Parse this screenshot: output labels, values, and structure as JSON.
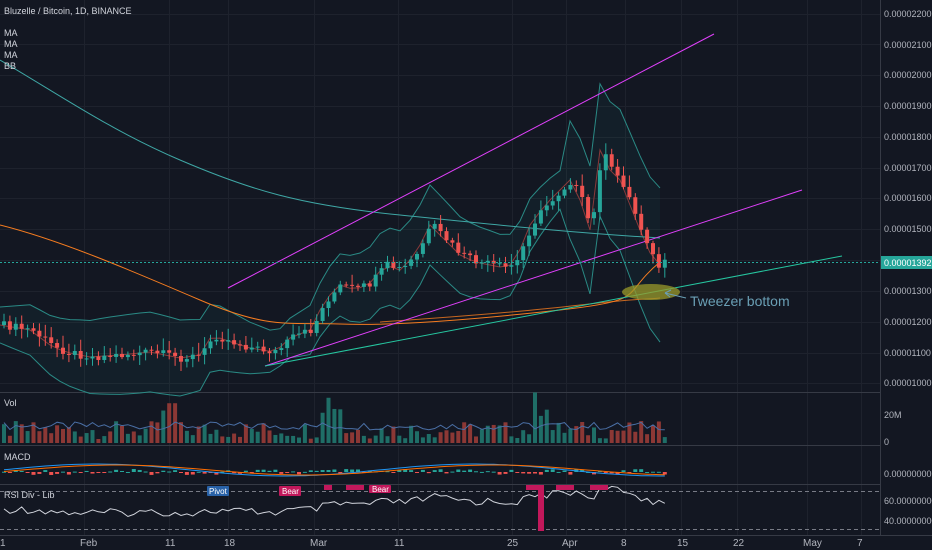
{
  "legend": {
    "symbol_line": "Bluzelle / Bitcoin, 1D, BINANCE",
    "indicators": [
      "MA",
      "MA",
      "MA",
      "BB"
    ]
  },
  "price_axis": {
    "ticks": [
      "0.00002200",
      "0.00002100",
      "0.00002000",
      "0.00001900",
      "0.00001800",
      "0.00001700",
      "0.00001600",
      "0.00001500",
      "0.00001300",
      "0.00001200",
      "0.00001100",
      "0.00001000"
    ],
    "tick_values": [
      2.2e-05,
      2.1e-05,
      2e-05,
      1.9e-05,
      1.8e-05,
      1.7e-05,
      1.6e-05,
      1.5e-05,
      1.3e-05,
      1.2e-05,
      1.1e-05,
      1e-05
    ],
    "current_price": "0.00001392"
  },
  "date_axis": {
    "labels": [
      "1",
      "Feb",
      "11",
      "18",
      "Mar",
      "11",
      "25",
      "Apr",
      "8",
      "15",
      "22",
      "May",
      "7"
    ]
  },
  "annotation": {
    "text": "Tweezer bottom"
  },
  "volume_pane": {
    "title": "Vol",
    "ticks": [
      "20M",
      "0"
    ]
  },
  "macd_pane": {
    "title": "MACD",
    "value": "0.00000000"
  },
  "rsi_pane": {
    "title": "RSI Div - Lib",
    "ticks": [
      "60.00000000",
      "40.00000000"
    ],
    "labels": {
      "pivot": "Pivot",
      "bear1": "Bear",
      "bear2": "Bear"
    }
  },
  "colors": {
    "background": "#131722",
    "bull": "#26a69a",
    "bear": "#ef5350",
    "channel": "#e040fb",
    "current_price_badge": "#26a69a"
  }
}
